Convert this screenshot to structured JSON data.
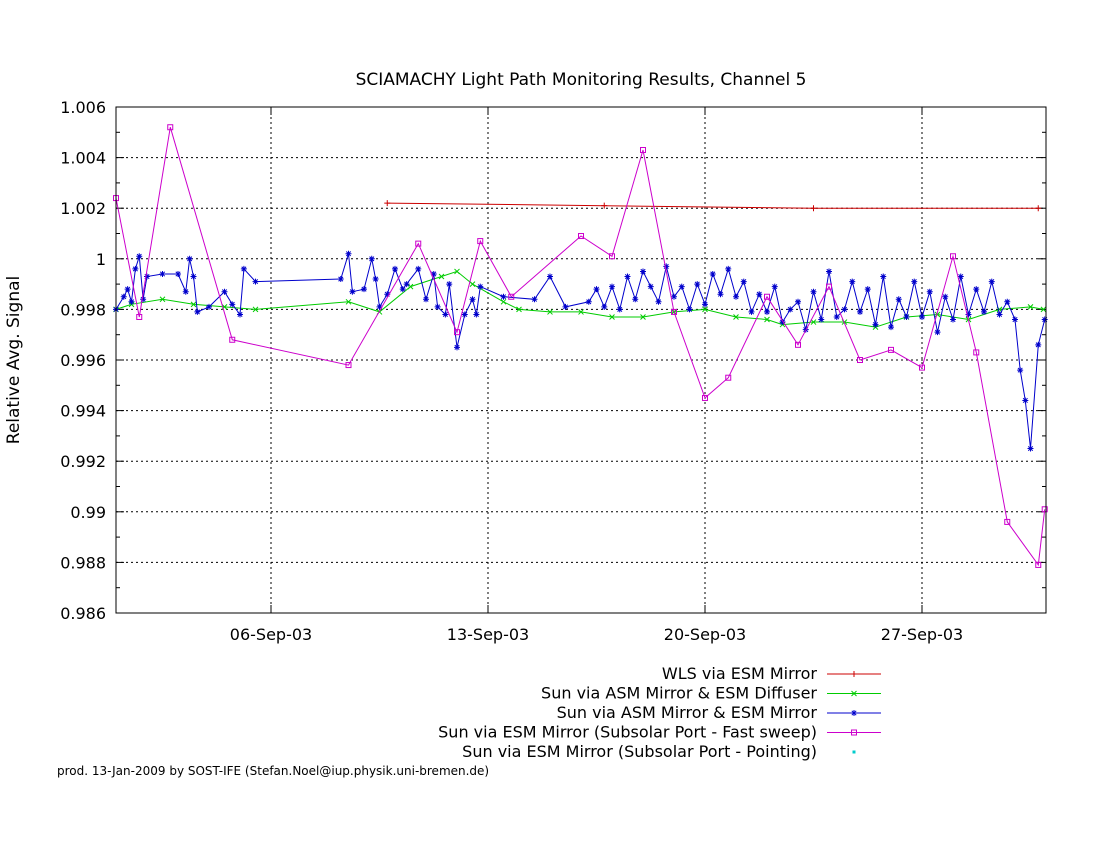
{
  "chart_data": {
    "type": "line",
    "title": "SCIAMACHY Light Path Monitoring Results, Channel 5",
    "xlabel": "",
    "ylabel": "Relative Avg. Signal",
    "xlim": [
      "2003-09-01T00:00",
      "2003-10-01T00:00"
    ],
    "ylim": [
      0.986,
      1.006
    ],
    "yticks": [
      "0.986",
      "0.988",
      "0.99",
      "0.992",
      "0.994",
      "0.996",
      "0.998",
      "1",
      "1.002",
      "1.004",
      "1.006"
    ],
    "xticks": [
      {
        "label": "06-Sep-03",
        "date": "2003-09-06T00:00"
      },
      {
        "label": "13-Sep-03",
        "date": "2003-09-13T00:00"
      },
      {
        "label": "20-Sep-03",
        "date": "2003-09-20T00:00"
      },
      {
        "label": "27-Sep-03",
        "date": "2003-09-27T00:00"
      }
    ],
    "grid": true,
    "legend_position": "below",
    "series": [
      {
        "name": "WLS via ESM Mirror",
        "color": "#cc0000",
        "marker": "plus",
        "points": [
          [
            "2003-09-09T18:00",
            1.0022
          ],
          [
            "2003-09-16T18:00",
            1.0021
          ],
          [
            "2003-09-23T12:00",
            1.002
          ],
          [
            "2003-09-30T18:00",
            1.002
          ]
        ]
      },
      {
        "name": "Sun via ASM Mirror & ESM Diffuser",
        "color": "#00cc00",
        "marker": "x",
        "points": [
          [
            "2003-09-01T00:00",
            0.998
          ],
          [
            "2003-09-01T12:00",
            0.9982
          ],
          [
            "2003-09-02T12:00",
            0.9984
          ],
          [
            "2003-09-03T12:00",
            0.9982
          ],
          [
            "2003-09-04T12:00",
            0.9981
          ],
          [
            "2003-09-05T12:00",
            0.998
          ],
          [
            "2003-09-08T12:00",
            0.9983
          ],
          [
            "2003-09-09T12:00",
            0.9979
          ],
          [
            "2003-09-10T12:00",
            0.9989
          ],
          [
            "2003-09-11T12:00",
            0.9993
          ],
          [
            "2003-09-12T00:00",
            0.9995
          ],
          [
            "2003-09-12T12:00",
            0.999
          ],
          [
            "2003-09-13T12:00",
            0.9983
          ],
          [
            "2003-09-14T00:00",
            0.998
          ],
          [
            "2003-09-15T00:00",
            0.9979
          ],
          [
            "2003-09-16T00:00",
            0.9979
          ],
          [
            "2003-09-17T00:00",
            0.9977
          ],
          [
            "2003-09-18T00:00",
            0.9977
          ],
          [
            "2003-09-19T00:00",
            0.9979
          ],
          [
            "2003-09-20T00:00",
            0.998
          ],
          [
            "2003-09-21T00:00",
            0.9977
          ],
          [
            "2003-09-22T00:00",
            0.9976
          ],
          [
            "2003-09-22T12:00",
            0.9974
          ],
          [
            "2003-09-23T12:00",
            0.9975
          ],
          [
            "2003-09-24T12:00",
            0.9975
          ],
          [
            "2003-09-25T12:00",
            0.9973
          ],
          [
            "2003-09-26T12:00",
            0.9977
          ],
          [
            "2003-09-27T12:00",
            0.9978
          ],
          [
            "2003-09-28T12:00",
            0.9976
          ],
          [
            "2003-09-29T12:00",
            0.998
          ],
          [
            "2003-09-30T12:00",
            0.9981
          ],
          [
            "2003-09-30T22:00",
            0.998
          ]
        ]
      },
      {
        "name": "Sun via ASM Mirror & ESM Mirror",
        "color": "#0000cc",
        "marker": "star",
        "points": [
          [
            "2003-09-01T00:00",
            0.998
          ],
          [
            "2003-09-01T06:00",
            0.9985
          ],
          [
            "2003-09-01T09:00",
            0.9988
          ],
          [
            "2003-09-01T12:00",
            0.9983
          ],
          [
            "2003-09-01T15:00",
            0.9996
          ],
          [
            "2003-09-01T18:00",
            1.0001
          ],
          [
            "2003-09-01T21:00",
            0.9984
          ],
          [
            "2003-09-02T00:00",
            0.9993
          ],
          [
            "2003-09-02T12:00",
            0.9994
          ],
          [
            "2003-09-03T00:00",
            0.9994
          ],
          [
            "2003-09-03T06:00",
            0.9987
          ],
          [
            "2003-09-03T09:00",
            1.0
          ],
          [
            "2003-09-03T12:00",
            0.9993
          ],
          [
            "2003-09-03T15:00",
            0.9979
          ],
          [
            "2003-09-04T00:00",
            0.9981
          ],
          [
            "2003-09-04T12:00",
            0.9987
          ],
          [
            "2003-09-04T18:00",
            0.9982
          ],
          [
            "2003-09-05T00:00",
            0.9978
          ],
          [
            "2003-09-05T03:00",
            0.9996
          ],
          [
            "2003-09-05T12:00",
            0.9991
          ],
          [
            "2003-09-08T06:00",
            0.9992
          ],
          [
            "2003-09-08T12:00",
            1.0002
          ],
          [
            "2003-09-08T15:00",
            0.9987
          ],
          [
            "2003-09-09T00:00",
            0.9988
          ],
          [
            "2003-09-09T06:00",
            1.0
          ],
          [
            "2003-09-09T09:00",
            0.9992
          ],
          [
            "2003-09-09T12:00",
            0.9981
          ],
          [
            "2003-09-09T18:00",
            0.9986
          ],
          [
            "2003-09-10T00:00",
            0.9996
          ],
          [
            "2003-09-10T06:00",
            0.9988
          ],
          [
            "2003-09-10T09:00",
            0.999
          ],
          [
            "2003-09-10T18:00",
            0.9996
          ],
          [
            "2003-09-11T00:00",
            0.9984
          ],
          [
            "2003-09-11T06:00",
            0.9994
          ],
          [
            "2003-09-11T09:00",
            0.9981
          ],
          [
            "2003-09-11T15:00",
            0.9978
          ],
          [
            "2003-09-11T18:00",
            0.999
          ],
          [
            "2003-09-12T00:00",
            0.9965
          ],
          [
            "2003-09-12T06:00",
            0.9978
          ],
          [
            "2003-09-12T12:00",
            0.9984
          ],
          [
            "2003-09-12T15:00",
            0.9978
          ],
          [
            "2003-09-12T18:00",
            0.9989
          ],
          [
            "2003-09-13T12:00",
            0.9985
          ],
          [
            "2003-09-14T12:00",
            0.9984
          ],
          [
            "2003-09-15T00:00",
            0.9993
          ],
          [
            "2003-09-15T12:00",
            0.9981
          ],
          [
            "2003-09-16T06:00",
            0.9983
          ],
          [
            "2003-09-16T12:00",
            0.9988
          ],
          [
            "2003-09-16T18:00",
            0.9981
          ],
          [
            "2003-09-17T00:00",
            0.9989
          ],
          [
            "2003-09-17T06:00",
            0.998
          ],
          [
            "2003-09-17T12:00",
            0.9993
          ],
          [
            "2003-09-17T18:00",
            0.9984
          ],
          [
            "2003-09-18T00:00",
            0.9995
          ],
          [
            "2003-09-18T06:00",
            0.9989
          ],
          [
            "2003-09-18T12:00",
            0.9983
          ],
          [
            "2003-09-18T18:00",
            0.9997
          ],
          [
            "2003-09-19T00:00",
            0.9985
          ],
          [
            "2003-09-19T06:00",
            0.9989
          ],
          [
            "2003-09-19T12:00",
            0.998
          ],
          [
            "2003-09-19T18:00",
            0.999
          ],
          [
            "2003-09-20T00:00",
            0.9982
          ],
          [
            "2003-09-20T06:00",
            0.9994
          ],
          [
            "2003-09-20T12:00",
            0.9986
          ],
          [
            "2003-09-20T18:00",
            0.9996
          ],
          [
            "2003-09-21T00:00",
            0.9985
          ],
          [
            "2003-09-21T06:00",
            0.9991
          ],
          [
            "2003-09-21T12:00",
            0.9979
          ],
          [
            "2003-09-21T18:00",
            0.9986
          ],
          [
            "2003-09-22T00:00",
            0.9979
          ],
          [
            "2003-09-22T06:00",
            0.9989
          ],
          [
            "2003-09-22T12:00",
            0.9975
          ],
          [
            "2003-09-22T18:00",
            0.998
          ],
          [
            "2003-09-23T00:00",
            0.9983
          ],
          [
            "2003-09-23T06:00",
            0.9972
          ],
          [
            "2003-09-23T12:00",
            0.9987
          ],
          [
            "2003-09-23T18:00",
            0.9976
          ],
          [
            "2003-09-24T00:00",
            0.9995
          ],
          [
            "2003-09-24T06:00",
            0.9977
          ],
          [
            "2003-09-24T12:00",
            0.998
          ],
          [
            "2003-09-24T18:00",
            0.9991
          ],
          [
            "2003-09-25T00:00",
            0.9979
          ],
          [
            "2003-09-25T06:00",
            0.9988
          ],
          [
            "2003-09-25T12:00",
            0.9974
          ],
          [
            "2003-09-25T18:00",
            0.9993
          ],
          [
            "2003-09-26T00:00",
            0.9973
          ],
          [
            "2003-09-26T06:00",
            0.9984
          ],
          [
            "2003-09-26T12:00",
            0.9977
          ],
          [
            "2003-09-26T18:00",
            0.9991
          ],
          [
            "2003-09-27T00:00",
            0.9977
          ],
          [
            "2003-09-27T06:00",
            0.9987
          ],
          [
            "2003-09-27T12:00",
            0.9971
          ],
          [
            "2003-09-27T18:00",
            0.9985
          ],
          [
            "2003-09-28T00:00",
            0.9976
          ],
          [
            "2003-09-28T06:00",
            0.9993
          ],
          [
            "2003-09-28T12:00",
            0.9978
          ],
          [
            "2003-09-28T18:00",
            0.9988
          ],
          [
            "2003-09-29T00:00",
            0.9979
          ],
          [
            "2003-09-29T06:00",
            0.9991
          ],
          [
            "2003-09-29T12:00",
            0.9978
          ],
          [
            "2003-09-29T18:00",
            0.9983
          ],
          [
            "2003-09-30T00:00",
            0.9976
          ],
          [
            "2003-09-30T04:00",
            0.9956
          ],
          [
            "2003-09-30T08:00",
            0.9944
          ],
          [
            "2003-09-30T12:00",
            0.9925
          ],
          [
            "2003-09-30T18:00",
            0.9966
          ],
          [
            "2003-09-30T23:00",
            0.9976
          ]
        ]
      },
      {
        "name": "Sun via ESM Mirror (Subsolar Port - Fast sweep)",
        "color": "#cc00cc",
        "marker": "square",
        "points": [
          [
            "2003-09-01T00:00",
            1.0024
          ],
          [
            "2003-09-01T18:00",
            0.9977
          ],
          [
            "2003-09-02T18:00",
            1.0052
          ],
          [
            "2003-09-04T18:00",
            0.9968
          ],
          [
            "2003-09-08T12:00",
            0.9958
          ],
          [
            "2003-09-10T18:00",
            1.0006
          ],
          [
            "2003-09-12T00:00",
            0.9971
          ],
          [
            "2003-09-12T18:00",
            1.0007
          ],
          [
            "2003-09-13T18:00",
            0.9985
          ],
          [
            "2003-09-16T00:00",
            1.0009
          ],
          [
            "2003-09-17T00:00",
            1.0001
          ],
          [
            "2003-09-18T00:00",
            1.0043
          ],
          [
            "2003-09-19T00:00",
            0.9979
          ],
          [
            "2003-09-20T00:00",
            0.9945
          ],
          [
            "2003-09-20T18:00",
            0.9953
          ],
          [
            "2003-09-22T00:00",
            0.9985
          ],
          [
            "2003-09-23T00:00",
            0.9966
          ],
          [
            "2003-09-24T00:00",
            0.9989
          ],
          [
            "2003-09-25T00:00",
            0.996
          ],
          [
            "2003-09-26T00:00",
            0.9964
          ],
          [
            "2003-09-27T00:00",
            0.9957
          ],
          [
            "2003-09-28T00:00",
            1.0001
          ],
          [
            "2003-09-28T18:00",
            0.9963
          ],
          [
            "2003-09-29T18:00",
            0.9896
          ],
          [
            "2003-09-30T18:00",
            0.9879
          ],
          [
            "2003-09-30T23:00",
            0.9901
          ]
        ]
      },
      {
        "name": "Sun via ESM Mirror (Subsolar Port - Pointing)",
        "color": "#00cccc",
        "marker": "dot",
        "points": []
      }
    ]
  },
  "footer": "prod. 13-Jan-2009 by SOST-IFE (Stefan.Noel@iup.physik.uni-bremen.de)"
}
